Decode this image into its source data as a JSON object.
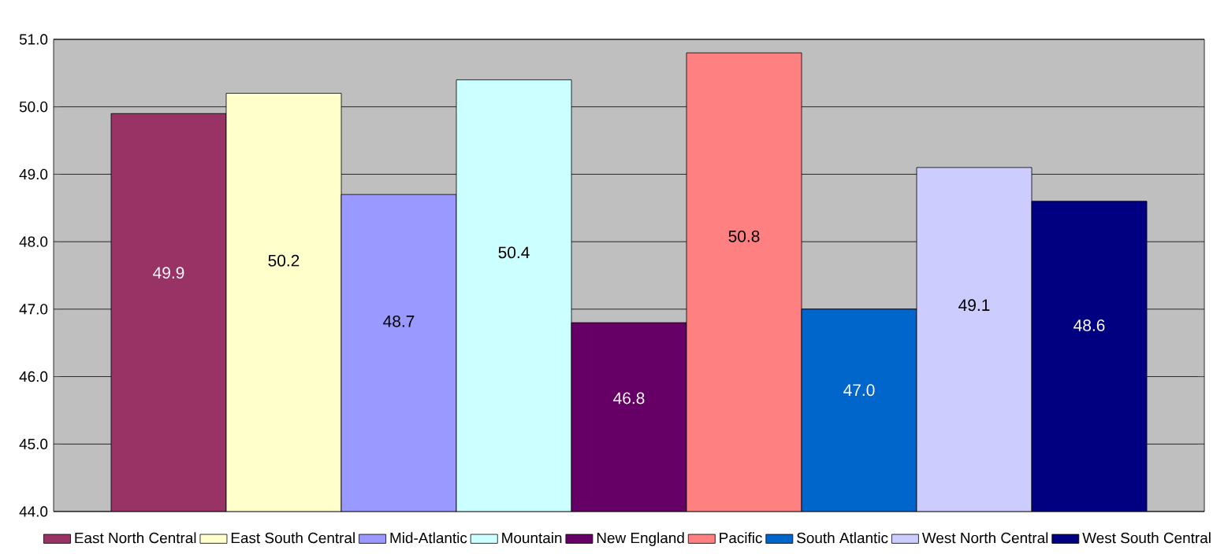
{
  "chart_data": {
    "type": "bar",
    "categories": [
      null
    ],
    "ylim": [
      44,
      51
    ],
    "yticks": [
      {
        "value": 44,
        "label": "44.0"
      },
      {
        "value": 45,
        "label": "45.0"
      },
      {
        "value": 46,
        "label": "46.0"
      },
      {
        "value": 47,
        "label": "47.0"
      },
      {
        "value": 48,
        "label": "48.0"
      },
      {
        "value": 49,
        "label": "49.0"
      },
      {
        "value": 50,
        "label": "50.0"
      },
      {
        "value": 51,
        "label": "51.0"
      }
    ],
    "grid": "y",
    "legend": "bottom",
    "series": [
      {
        "name": "East North Central",
        "color": "#993366",
        "values": [
          49.9
        ],
        "value_labels": [
          "49.9"
        ]
      },
      {
        "name": "East South Central",
        "color": "#ffffcc",
        "values": [
          50.2
        ],
        "value_labels": [
          "50.2"
        ]
      },
      {
        "name": "Mid-Atlantic",
        "color": "#9999ff",
        "values": [
          48.7
        ],
        "value_labels": [
          "48.7"
        ]
      },
      {
        "name": "Mountain",
        "color": "#ccffff",
        "values": [
          50.4
        ],
        "value_labels": [
          "50.4"
        ]
      },
      {
        "name": "New England",
        "color": "#660066",
        "values": [
          46.8
        ],
        "value_labels": [
          "46.8"
        ]
      },
      {
        "name": "Pacific",
        "color": "#ff8080",
        "values": [
          50.8
        ],
        "value_labels": [
          "50.8"
        ]
      },
      {
        "name": "South Atlantic",
        "color": "#0066cc",
        "values": [
          47.0
        ],
        "value_labels": [
          "47.0"
        ]
      },
      {
        "name": "West North Central",
        "color": "#ccccff",
        "values": [
          49.1
        ],
        "value_labels": [
          "49.1"
        ]
      },
      {
        "name": "West South Central",
        "color": "#000080",
        "values": [
          48.6
        ],
        "value_labels": [
          "48.6"
        ]
      }
    ]
  }
}
